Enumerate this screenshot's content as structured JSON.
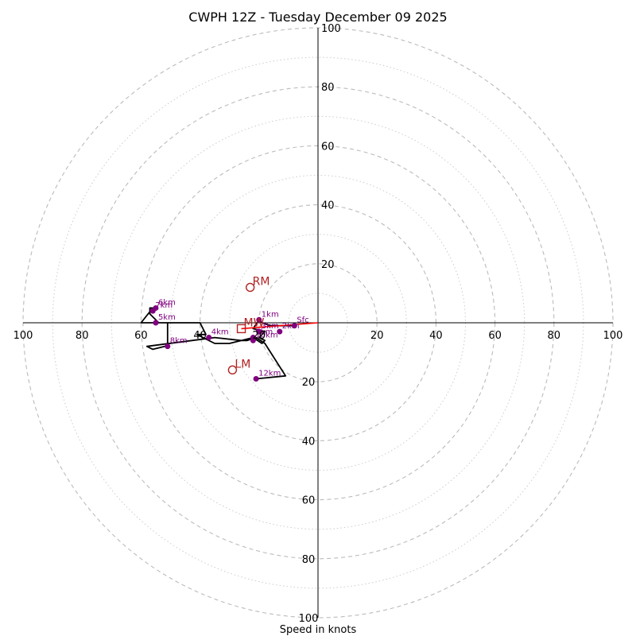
{
  "chart_data": {
    "type": "hodograph",
    "title": "CWPH 12Z - Tuesday December 09 2025",
    "xlabel": "Speed in knots",
    "range_max": 100,
    "major_rings": [
      20,
      40,
      60,
      80,
      100
    ],
    "minor_rings": [
      10,
      30,
      50,
      70,
      90
    ],
    "ticks": {
      "x_left": [
        "100",
        "80",
        "60",
        "40",
        "20"
      ],
      "x_right": [
        "20",
        "40",
        "60",
        "80",
        "100"
      ],
      "y_top": [
        "100",
        "80",
        "60",
        "40",
        "20"
      ],
      "y_bottom": [
        "20",
        "40",
        "60",
        "80",
        "100"
      ]
    },
    "colors": {
      "trace": "#000000",
      "height_points": "#800080",
      "motion_markers": "#b22222",
      "shear_vector": "#ff0000",
      "grid": "#bbbbbb"
    },
    "trace_u_v": [
      [
        -8,
        -1
      ],
      [
        -12,
        -1
      ],
      [
        -16,
        -1
      ],
      [
        -19,
        0
      ],
      [
        -20,
        1
      ],
      [
        -22,
        -2
      ],
      [
        -18,
        -3
      ],
      [
        -20,
        -5
      ],
      [
        -18,
        -6
      ],
      [
        -19,
        -7
      ],
      [
        -22,
        -5
      ],
      [
        -30,
        -7
      ],
      [
        -35,
        -7
      ],
      [
        -39,
        -5
      ],
      [
        -41,
        -4
      ],
      [
        -38,
        -4
      ],
      [
        -40,
        0
      ],
      [
        -47,
        0
      ],
      [
        -54,
        0
      ],
      [
        -57,
        3
      ],
      [
        -57,
        5
      ],
      [
        -56,
        5
      ],
      [
        -60,
        0
      ],
      [
        -55,
        0
      ],
      [
        -51,
        0
      ],
      [
        -51,
        -8
      ],
      [
        -52,
        -8
      ],
      [
        -56,
        -9
      ],
      [
        -58,
        -8
      ],
      [
        -35,
        -5
      ],
      [
        -26,
        -6
      ],
      [
        -24,
        -6
      ],
      [
        -21,
        -5
      ],
      [
        -18,
        -7
      ],
      [
        -11,
        -18
      ],
      [
        -21,
        -19
      ]
    ],
    "height_points": [
      {
        "label": "Sfc",
        "u": -8,
        "v": -1
      },
      {
        "label": "1km",
        "u": -20,
        "v": 1
      },
      {
        "label": "2km",
        "u": -13,
        "v": -3
      },
      {
        "label": "3km",
        "u": -20,
        "v": -3
      },
      {
        "label": "4km",
        "u": -37,
        "v": -5
      },
      {
        "label": "5km",
        "u": -55,
        "v": 0
      },
      {
        "label": "6km",
        "u": -55,
        "v": 5
      },
      {
        "label": "7km",
        "u": -56,
        "v": 4
      },
      {
        "label": "8km",
        "u": -51,
        "v": -8
      },
      {
        "label": "9km",
        "u": -22,
        "v": -5
      },
      {
        "label": "10km",
        "u": -22,
        "v": -6
      },
      {
        "label": "12km",
        "u": -21,
        "v": -19
      }
    ],
    "markers": [
      {
        "label": "RM",
        "u": -23,
        "v": 12,
        "shape": "circle"
      },
      {
        "label": "LM",
        "u": -29,
        "v": -16,
        "shape": "circle"
      },
      {
        "label": "MW",
        "u": -26,
        "v": -2,
        "shape": "square"
      }
    ],
    "shear_vector": {
      "from": [
        -26,
        -2
      ],
      "to": [
        0,
        0
      ]
    }
  }
}
